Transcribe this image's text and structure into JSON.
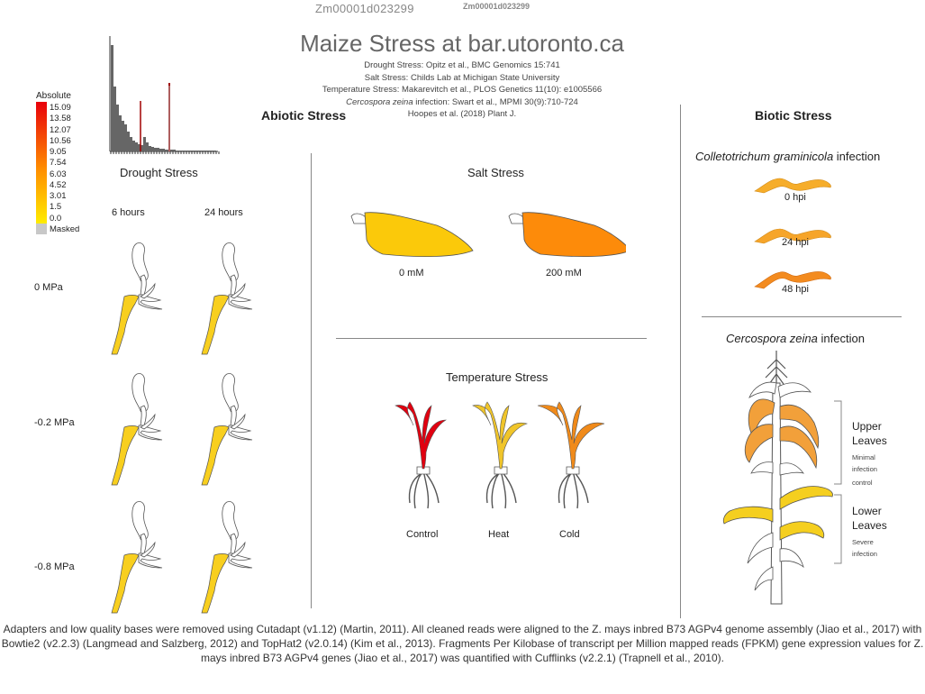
{
  "gene_id": "Zm00001d023299",
  "title": "Maize Stress at bar.utoronto.ca",
  "citations": [
    {
      "label": "Drought Stress:",
      "text": " Opitz et al., BMC Genomics 15:741"
    },
    {
      "label": "Salt Stress:",
      "text": "  Childs Lab at Michigan State University"
    },
    {
      "label": "Temperature Stress:",
      "text": " Makarevitch et al., PLOS Genetics 11(10): e1005566"
    },
    {
      "label": "Cercospora zeina",
      "text": " infection: Swart et al., MPMI 30(9):710-724"
    },
    {
      "label": "",
      "text": "Hoopes et al. (2018) Plant J."
    }
  ],
  "legend": {
    "title": "Absolute",
    "ticks": [
      "15.09",
      "13.58",
      "12.07",
      "10.56",
      "9.05",
      "7.54",
      "6.03",
      "4.52",
      "3.01",
      "1.5",
      "0.0",
      "Masked"
    ],
    "colors": {
      "max": "#e8000b",
      "mid": "#ff8c00",
      "min": "#ffff00",
      "masked": "#c8c8c8"
    }
  },
  "sections": {
    "abiotic": "Abiotic Stress",
    "biotic": "Biotic Stress"
  },
  "drought": {
    "title": "Drought Stress",
    "columns": [
      "6 hours",
      "24 hours"
    ],
    "rows": [
      "0 MPa",
      "-0.2 MPa",
      "-0.8 MPa"
    ],
    "colors": [
      [
        "#f8cf1f",
        "#f8cf1f"
      ],
      [
        "#f8cf1f",
        "#f8cf1f"
      ],
      [
        "#f8cf1f",
        "#f8cf1f"
      ]
    ]
  },
  "salt": {
    "title": "Salt Stress",
    "samples": [
      {
        "label": "0 mM",
        "color": "#fbc90a"
      },
      {
        "label": "200 mM",
        "color": "#fd8b0a"
      }
    ]
  },
  "temperature": {
    "title": "Temperature Stress",
    "samples": [
      {
        "label": "Control",
        "color": "#e00010"
      },
      {
        "label": "Heat",
        "color": "#f0c52a"
      },
      {
        "label": "Cold",
        "color": "#f08a1a"
      }
    ]
  },
  "colletotrichum": {
    "title_italic": "Colletotrichum graminicola",
    "title_rest": " infection",
    "samples": [
      {
        "label": "0 hpi",
        "color": "#f6ad2a"
      },
      {
        "label": "24 hpi",
        "color": "#f6a52a"
      },
      {
        "label": "48 hpi",
        "color": "#f38b1f"
      }
    ]
  },
  "cercospora": {
    "title_italic": "Cercospora zeina",
    "title_rest": " infection",
    "upper": {
      "label1": "Upper",
      "label2": "Leaves",
      "note1": "Minimal",
      "note2": "infection",
      "color": "#f2a03a"
    },
    "control_label": "control",
    "lower": {
      "label1": "Lower",
      "label2": "Leaves",
      "note1": "Severe",
      "note2": "infection",
      "color": "#f5cf1f"
    }
  },
  "footer": "Adapters and low quality bases were removed using Cutadapt (v1.12) (Martin, 2011). All cleaned reads were aligned to the Z. mays inbred B73 AGPv4 genome assembly (Jiao et al., 2017) with Bowtie2 (v2.2.3) (Langmead and Salzberg, 2012) and TopHat2 (v2.0.14) (Kim et al., 2013). Fragments Per Kilobase of transcript per Million mapped reads (FPKM) gene expression values for Z. mays inbred B73 AGPv4 genes (Jiao et al., 2017) was quantified with Cufflinks (v2.2.1) (Trapnell et al., 2010)."
}
